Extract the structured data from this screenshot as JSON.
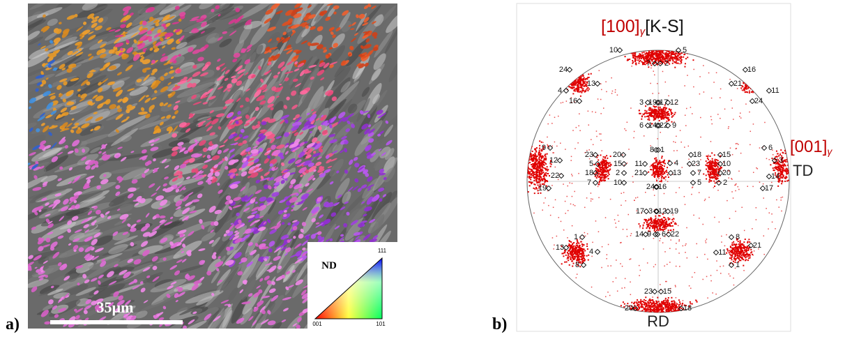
{
  "panel_a": {
    "label": "a)",
    "scale_bar": "35µm",
    "inset": {
      "title": "ND",
      "corner_top": "111",
      "corner_left": "001",
      "corner_right": "101"
    }
  },
  "panel_b": {
    "label": "b)",
    "title_main": "[100]",
    "title_sub": "γ",
    "title_ref": "[K-S]",
    "right_main": "[001]",
    "right_sub": "γ",
    "td": "TD",
    "rd": "RD",
    "variant_labels": [
      "10",
      "5",
      "7",
      "2",
      "24",
      "13",
      "4",
      "16",
      "16",
      "21",
      "11",
      "24",
      "3",
      "19",
      "17",
      "12",
      "6",
      "14",
      "22",
      "9",
      "23",
      "20",
      "5",
      "15",
      "18",
      "2",
      "7",
      "10",
      "8",
      "1",
      "11",
      "4",
      "21",
      "13",
      "24",
      "16",
      "18",
      "15",
      "23",
      "10",
      "7",
      "20",
      "5",
      "2",
      "9",
      "12",
      "22",
      "19",
      "6",
      "3",
      "14",
      "17",
      "17",
      "3",
      "12",
      "19",
      "14",
      "9",
      "6",
      "22",
      "1",
      "13",
      "4",
      "8",
      "8",
      "11",
      "21",
      "1",
      "23",
      "15",
      "20",
      "18"
    ]
  }
}
